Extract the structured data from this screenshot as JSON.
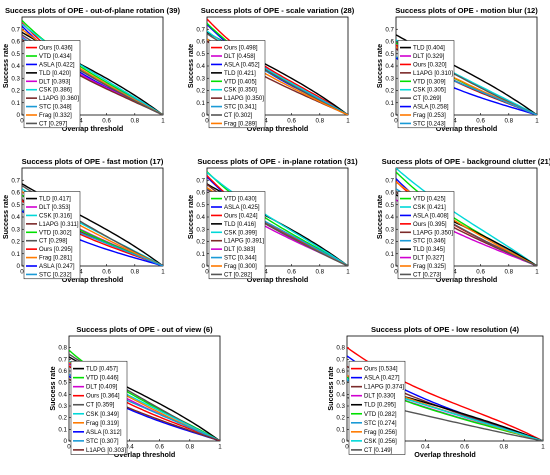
{
  "chart_data": [
    {
      "type": "line",
      "title": "Success plots of OPE - out-of-plane rotation (39)",
      "xlabel": "Overlap threshold",
      "ylabel": "Success rate",
      "xlim": [
        0,
        1
      ],
      "ylim": [
        0,
        0.8
      ],
      "xticks": [
        "0",
        "0.2",
        "0.4",
        "0.6",
        "0.8",
        "1"
      ],
      "yticks": [
        "0",
        "0.1",
        "0.2",
        "0.3",
        "0.4",
        "0.5",
        "0.6",
        "0.7"
      ],
      "legend_position": "center-left",
      "series": [
        {
          "name": "Ours",
          "auc": "0.436"
        },
        {
          "name": "VTD",
          "auc": "0.434"
        },
        {
          "name": "ASLA",
          "auc": "0.422"
        },
        {
          "name": "TLD",
          "auc": "0.420"
        },
        {
          "name": "DLT",
          "auc": "0.393"
        },
        {
          "name": "CSK",
          "auc": "0.386"
        },
        {
          "name": "L1APG",
          "auc": "0.360"
        },
        {
          "name": "STC",
          "auc": "0.348"
        },
        {
          "name": "Frag",
          "auc": "0.332"
        },
        {
          "name": "CT",
          "auc": "0.297"
        }
      ]
    },
    {
      "type": "line",
      "title": "Success plots of OPE - scale variation (28)",
      "xlabel": "Overlap threshold",
      "ylabel": "Success rate",
      "xlim": [
        0,
        1
      ],
      "ylim": [
        0,
        0.8
      ],
      "xticks": [
        "0",
        "0.2",
        "0.4",
        "0.6",
        "0.8",
        "1"
      ],
      "yticks": [
        "0",
        "0.1",
        "0.2",
        "0.3",
        "0.4",
        "0.5",
        "0.6",
        "0.7"
      ],
      "legend_position": "center-left",
      "series": [
        {
          "name": "Ours",
          "auc": "0.498"
        },
        {
          "name": "DLT",
          "auc": "0.458"
        },
        {
          "name": "ASLA",
          "auc": "0.452"
        },
        {
          "name": "TLD",
          "auc": "0.421"
        },
        {
          "name": "VTD",
          "auc": "0.405"
        },
        {
          "name": "CSK",
          "auc": "0.350"
        },
        {
          "name": "L1APG",
          "auc": "0.350"
        },
        {
          "name": "STC",
          "auc": "0.341"
        },
        {
          "name": "CT",
          "auc": "0.302"
        },
        {
          "name": "Frag",
          "auc": "0.289"
        }
      ]
    },
    {
      "type": "line",
      "title": "Success plots of OPE - motion blur (12)",
      "xlabel": "Overlap threshold",
      "ylabel": "Success rate",
      "xlim": [
        0,
        1
      ],
      "ylim": [
        0,
        0.8
      ],
      "xticks": [
        "0",
        "0.2",
        "0.4",
        "0.6",
        "0.8",
        "1"
      ],
      "yticks": [
        "0",
        "0.1",
        "0.2",
        "0.3",
        "0.4",
        "0.5",
        "0.6",
        "0.7"
      ],
      "legend_position": "center-left",
      "series": [
        {
          "name": "TLD",
          "auc": "0.404"
        },
        {
          "name": "DLT",
          "auc": "0.329"
        },
        {
          "name": "Ours",
          "auc": "0.320"
        },
        {
          "name": "L1APG",
          "auc": "0.310"
        },
        {
          "name": "VTD",
          "auc": "0.309"
        },
        {
          "name": "CSK",
          "auc": "0.305"
        },
        {
          "name": "CT",
          "auc": "0.269"
        },
        {
          "name": "ASLA",
          "auc": "0.258"
        },
        {
          "name": "Frag",
          "auc": "0.253"
        },
        {
          "name": "STC",
          "auc": "0.243"
        }
      ]
    },
    {
      "type": "line",
      "title": "Success plots of OPE - fast motion (17)",
      "xlabel": "Overlap threshold",
      "ylabel": "Success rate",
      "xlim": [
        0,
        1
      ],
      "ylim": [
        0,
        0.8
      ],
      "xticks": [
        "0",
        "0.2",
        "0.4",
        "0.6",
        "0.8",
        "1"
      ],
      "yticks": [
        "0",
        "0.1",
        "0.2",
        "0.3",
        "0.4",
        "0.5",
        "0.6",
        "0.7"
      ],
      "legend_position": "center-left",
      "series": [
        {
          "name": "TLD",
          "auc": "0.417"
        },
        {
          "name": "DLT",
          "auc": "0.353"
        },
        {
          "name": "CSK",
          "auc": "0.316"
        },
        {
          "name": "L1APG",
          "auc": "0.311"
        },
        {
          "name": "VTD",
          "auc": "0.302"
        },
        {
          "name": "CT",
          "auc": "0.298"
        },
        {
          "name": "Ours",
          "auc": "0.295"
        },
        {
          "name": "Frag",
          "auc": "0.281"
        },
        {
          "name": "ASLA",
          "auc": "0.247"
        },
        {
          "name": "STC",
          "auc": "0.232"
        }
      ]
    },
    {
      "type": "line",
      "title": "Success plots of OPE - in-plane rotation (31)",
      "xlabel": "Overlap threshold",
      "ylabel": "Success rate",
      "xlim": [
        0,
        1
      ],
      "ylim": [
        0,
        0.8
      ],
      "xticks": [
        "0",
        "0.2",
        "0.4",
        "0.6",
        "0.8",
        "1"
      ],
      "yticks": [
        "0",
        "0.1",
        "0.2",
        "0.3",
        "0.4",
        "0.5",
        "0.6",
        "0.7"
      ],
      "legend_position": "center-left",
      "series": [
        {
          "name": "VTD",
          "auc": "0.430"
        },
        {
          "name": "ASLA",
          "auc": "0.425"
        },
        {
          "name": "Ours",
          "auc": "0.424"
        },
        {
          "name": "TLD",
          "auc": "0.416"
        },
        {
          "name": "CSK",
          "auc": "0.399"
        },
        {
          "name": "L1APG",
          "auc": "0.391"
        },
        {
          "name": "DLT",
          "auc": "0.383"
        },
        {
          "name": "STC",
          "auc": "0.344"
        },
        {
          "name": "Frag",
          "auc": "0.300"
        },
        {
          "name": "CT",
          "auc": "0.282"
        }
      ]
    },
    {
      "type": "line",
      "title": "Success plots of OPE - background clutter (21)",
      "xlabel": "Overlap threshold",
      "ylabel": "Success rate",
      "xlim": [
        0,
        1
      ],
      "ylim": [
        0,
        0.8
      ],
      "xticks": [
        "0",
        "0.2",
        "0.4",
        "0.6",
        "0.8",
        "1"
      ],
      "yticks": [
        "0",
        "0.1",
        "0.2",
        "0.3",
        "0.4",
        "0.5",
        "0.6",
        "0.7"
      ],
      "legend_position": "center-left",
      "series": [
        {
          "name": "VTD",
          "auc": "0.425"
        },
        {
          "name": "CSK",
          "auc": "0.421"
        },
        {
          "name": "ASLA",
          "auc": "0.408"
        },
        {
          "name": "Ours",
          "auc": "0.395"
        },
        {
          "name": "L1APG",
          "auc": "0.350"
        },
        {
          "name": "STC",
          "auc": "0.346"
        },
        {
          "name": "TLD",
          "auc": "0.345"
        },
        {
          "name": "DLT",
          "auc": "0.327"
        },
        {
          "name": "Frag",
          "auc": "0.325"
        },
        {
          "name": "CT",
          "auc": "0.273"
        }
      ]
    },
    {
      "type": "line",
      "title": "Success plots of OPE - out of view (6)",
      "xlabel": "Overlap threshold",
      "ylabel": "Success rate",
      "xlim": [
        0,
        1
      ],
      "ylim": [
        0,
        0.9
      ],
      "xticks": [
        "0",
        "0.2",
        "0.4",
        "0.6",
        "0.8",
        "1"
      ],
      "yticks": [
        "0",
        "0.1",
        "0.2",
        "0.3",
        "0.4",
        "0.5",
        "0.6",
        "0.7",
        "0.8"
      ],
      "legend_position": "center-left",
      "series": [
        {
          "name": "TLD",
          "auc": "0.457"
        },
        {
          "name": "VTD",
          "auc": "0.446"
        },
        {
          "name": "DLT",
          "auc": "0.409"
        },
        {
          "name": "Ours",
          "auc": "0.364"
        },
        {
          "name": "CT",
          "auc": "0.359"
        },
        {
          "name": "CSK",
          "auc": "0.349"
        },
        {
          "name": "Frag",
          "auc": "0.319"
        },
        {
          "name": "ASLA",
          "auc": "0.312"
        },
        {
          "name": "STC",
          "auc": "0.307"
        },
        {
          "name": "L1APG",
          "auc": "0.303"
        }
      ]
    },
    {
      "type": "line",
      "title": "Success plots of OPE - low resolution (4)",
      "xlabel": "Overlap threshold",
      "ylabel": "Success rate",
      "xlim": [
        0,
        1
      ],
      "ylim": [
        0,
        0.9
      ],
      "xticks": [
        "0",
        "0.2",
        "0.4",
        "0.6",
        "0.8",
        "1"
      ],
      "yticks": [
        "0",
        "0.1",
        "0.2",
        "0.3",
        "0.4",
        "0.5",
        "0.6",
        "0.7",
        "0.8"
      ],
      "legend_position": "center-left",
      "series": [
        {
          "name": "Ours",
          "auc": "0.534"
        },
        {
          "name": "ASLA",
          "auc": "0.427"
        },
        {
          "name": "L1APG",
          "auc": "0.374"
        },
        {
          "name": "DLT",
          "auc": "0.330"
        },
        {
          "name": "TLD",
          "auc": "0.295"
        },
        {
          "name": "VTD",
          "auc": "0.282"
        },
        {
          "name": "STC",
          "auc": "0.274"
        },
        {
          "name": "Frag",
          "auc": "0.256"
        },
        {
          "name": "CSK",
          "auc": "0.256"
        },
        {
          "name": "CT",
          "auc": "0.149"
        }
      ]
    }
  ],
  "colors": {
    "Ours": "#ff0000",
    "VTD": "#00e000",
    "ASLA": "#0000ff",
    "TLD": "#000000",
    "DLT": "#d000d0",
    "CSK": "#00d8d8",
    "L1APG": "#7b2a2a",
    "STC": "#1a9ad6",
    "Frag": "#ff7a00",
    "CT": "#555555"
  }
}
